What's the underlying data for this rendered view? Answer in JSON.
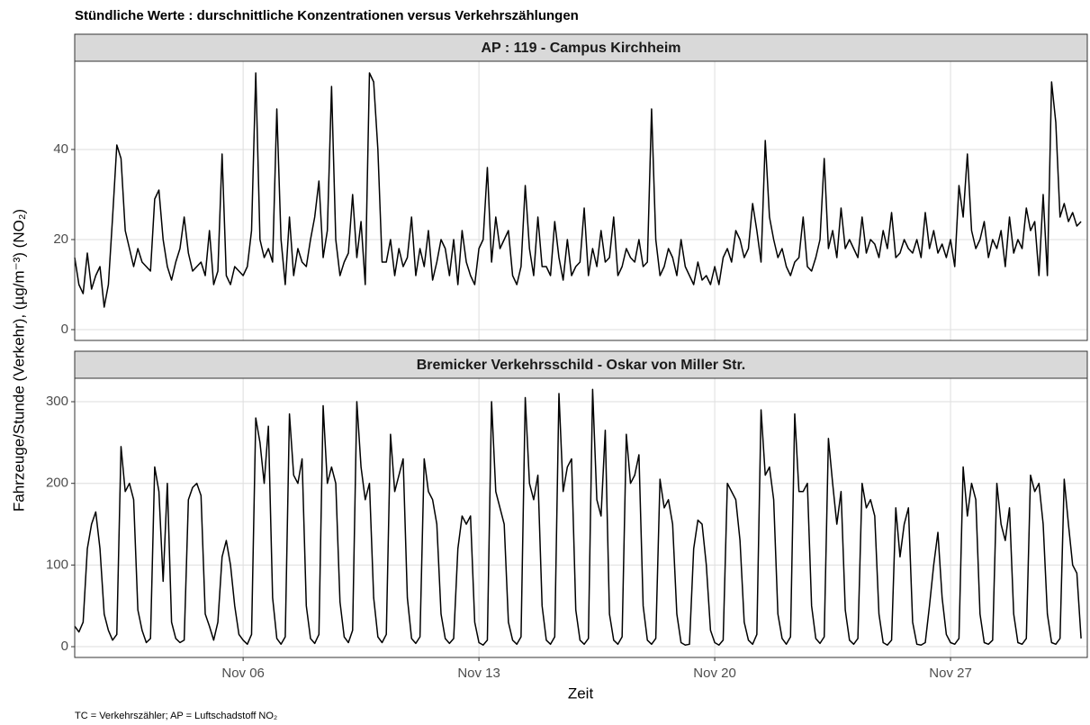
{
  "title": "Stündliche Werte : durschnittliche Konzentrationen versus Verkehrszählungen",
  "x_label": "Zeit",
  "y_label": "Fahrzeuge/Stunde (Verkehr), (µg/m⁻³) (NO₂)",
  "caption": "TC = Verkehrszähler; AP = Luftschadstoff NO₂",
  "chart_data": [
    {
      "type": "line",
      "title": "AP : 119 - Campus Kirchheim",
      "color": "#000000",
      "grid": true,
      "xlim": [
        1,
        31.06
      ],
      "ylim": [
        -2.4,
        59.6
      ],
      "yticks": [
        0,
        20,
        40
      ],
      "x": [
        1,
        1.125,
        1.25,
        1.375,
        1.5,
        1.625,
        1.75,
        1.875,
        2,
        2.125,
        2.25,
        2.375,
        2.5,
        2.625,
        2.75,
        2.875,
        3,
        3.125,
        3.25,
        3.375,
        3.5,
        3.625,
        3.75,
        3.875,
        4,
        4.125,
        4.25,
        4.375,
        4.5,
        4.625,
        4.75,
        4.875,
        5,
        5.125,
        5.25,
        5.375,
        5.5,
        5.625,
        5.75,
        5.875,
        6,
        6.125,
        6.25,
        6.375,
        6.5,
        6.625,
        6.75,
        6.875,
        7,
        7.125,
        7.25,
        7.375,
        7.5,
        7.625,
        7.75,
        7.875,
        8,
        8.125,
        8.25,
        8.375,
        8.5,
        8.625,
        8.75,
        8.875,
        9,
        9.125,
        9.25,
        9.375,
        9.5,
        9.625,
        9.75,
        9.875,
        10,
        10.125,
        10.25,
        10.375,
        10.5,
        10.625,
        10.75,
        10.875,
        11,
        11.125,
        11.25,
        11.375,
        11.5,
        11.625,
        11.75,
        11.875,
        12,
        12.125,
        12.25,
        12.375,
        12.5,
        12.625,
        12.75,
        12.875,
        13,
        13.125,
        13.25,
        13.375,
        13.5,
        13.625,
        13.75,
        13.875,
        14,
        14.125,
        14.25,
        14.375,
        14.5,
        14.625,
        14.75,
        14.875,
        15,
        15.125,
        15.25,
        15.375,
        15.5,
        15.625,
        15.75,
        15.875,
        16,
        16.125,
        16.25,
        16.375,
        16.5,
        16.625,
        16.75,
        16.875,
        17,
        17.125,
        17.25,
        17.375,
        17.5,
        17.625,
        17.75,
        17.875,
        18,
        18.125,
        18.25,
        18.375,
        18.5,
        18.625,
        18.75,
        18.875,
        19,
        19.125,
        19.25,
        19.375,
        19.5,
        19.625,
        19.75,
        19.875,
        20,
        20.125,
        20.25,
        20.375,
        20.5,
        20.625,
        20.75,
        20.875,
        21,
        21.125,
        21.25,
        21.375,
        21.5,
        21.625,
        21.75,
        21.875,
        22,
        22.125,
        22.25,
        22.375,
        22.5,
        22.625,
        22.75,
        22.875,
        23,
        23.125,
        23.25,
        23.375,
        23.5,
        23.625,
        23.75,
        23.875,
        24,
        24.125,
        24.25,
        24.375,
        24.5,
        24.625,
        24.75,
        24.875,
        25,
        25.125,
        25.25,
        25.375,
        25.5,
        25.625,
        25.75,
        25.875,
        26,
        26.125,
        26.25,
        26.375,
        26.5,
        26.625,
        26.75,
        26.875,
        27,
        27.125,
        27.25,
        27.375,
        27.5,
        27.625,
        27.75,
        27.875,
        28,
        28.125,
        28.25,
        28.375,
        28.5,
        28.625,
        28.75,
        28.875,
        29,
        29.125,
        29.25,
        29.375,
        29.5,
        29.625,
        29.75,
        29.875,
        30,
        30.125,
        30.25,
        30.375,
        30.5,
        30.625,
        30.75,
        30.875
      ],
      "values": [
        16,
        10,
        8,
        17,
        9,
        12,
        14,
        5,
        10,
        25,
        41,
        38,
        22,
        18,
        14,
        18,
        15,
        14,
        13,
        29,
        31,
        20,
        14,
        11,
        15,
        18,
        25,
        17,
        13,
        14,
        15,
        12,
        22,
        10,
        13,
        39,
        12,
        10,
        14,
        13,
        12,
        14,
        22,
        57,
        20,
        16,
        18,
        15,
        49,
        20,
        10,
        25,
        12,
        18,
        15,
        14,
        20,
        25,
        33,
        16,
        22,
        54,
        20,
        12,
        15,
        17,
        30,
        16,
        24,
        10,
        57,
        55,
        40,
        15,
        15,
        20,
        12,
        18,
        14,
        16,
        25,
        12,
        18,
        14,
        22,
        11,
        15,
        20,
        18,
        12,
        20,
        10,
        22,
        15,
        12,
        10,
        18,
        20,
        36,
        15,
        25,
        18,
        20,
        22,
        12,
        10,
        14,
        32,
        18,
        12,
        25,
        14,
        14,
        12,
        24,
        16,
        11,
        20,
        12,
        14,
        15,
        27,
        12,
        18,
        14,
        22,
        15,
        16,
        25,
        12,
        14,
        18,
        16,
        15,
        20,
        14,
        15,
        49,
        20,
        12,
        14,
        18,
        16,
        12,
        20,
        14,
        12,
        10,
        15,
        11,
        12,
        10,
        14,
        10,
        16,
        18,
        15,
        22,
        20,
        16,
        18,
        28,
        22,
        15,
        42,
        25,
        20,
        16,
        18,
        14,
        12,
        15,
        16,
        25,
        14,
        13,
        16,
        20,
        38,
        18,
        22,
        16,
        27,
        18,
        20,
        18,
        16,
        25,
        17,
        20,
        19,
        16,
        22,
        18,
        26,
        16,
        17,
        20,
        18,
        17,
        20,
        16,
        26,
        18,
        22,
        17,
        19,
        16,
        20,
        14,
        32,
        25,
        39,
        22,
        18,
        20,
        24,
        16,
        20,
        18,
        22,
        14,
        25,
        17,
        20,
        18,
        27,
        22,
        24,
        12,
        30,
        12,
        55,
        46,
        25,
        28,
        24,
        26,
        23,
        24
      ]
    },
    {
      "type": "line",
      "title": "Bremicker Verkehrsschild - Oskar von Miller Str.",
      "color": "#000000",
      "grid": true,
      "xlim": [
        1,
        31.06
      ],
      "ylim": [
        -13.2,
        328.7
      ],
      "yticks": [
        0,
        100,
        200,
        300
      ],
      "xticks": [
        {
          "value": 6,
          "label": "Nov 06"
        },
        {
          "value": 13,
          "label": "Nov 13"
        },
        {
          "value": 20,
          "label": "Nov 20"
        },
        {
          "value": 27,
          "label": "Nov 27"
        }
      ],
      "x": [
        1,
        1.125,
        1.25,
        1.375,
        1.5,
        1.625,
        1.75,
        1.875,
        2,
        2.125,
        2.25,
        2.375,
        2.5,
        2.625,
        2.75,
        2.875,
        3,
        3.125,
        3.25,
        3.375,
        3.5,
        3.625,
        3.75,
        3.875,
        4,
        4.125,
        4.25,
        4.375,
        4.5,
        4.625,
        4.75,
        4.875,
        5,
        5.125,
        5.25,
        5.375,
        5.5,
        5.625,
        5.75,
        5.875,
        6,
        6.125,
        6.25,
        6.375,
        6.5,
        6.625,
        6.75,
        6.875,
        7,
        7.125,
        7.25,
        7.375,
        7.5,
        7.625,
        7.75,
        7.875,
        8,
        8.125,
        8.25,
        8.375,
        8.5,
        8.625,
        8.75,
        8.875,
        9,
        9.125,
        9.25,
        9.375,
        9.5,
        9.625,
        9.75,
        9.875,
        10,
        10.125,
        10.25,
        10.375,
        10.5,
        10.625,
        10.75,
        10.875,
        11,
        11.125,
        11.25,
        11.375,
        11.5,
        11.625,
        11.75,
        11.875,
        12,
        12.125,
        12.25,
        12.375,
        12.5,
        12.625,
        12.75,
        12.875,
        13,
        13.125,
        13.25,
        13.375,
        13.5,
        13.625,
        13.75,
        13.875,
        14,
        14.125,
        14.25,
        14.375,
        14.5,
        14.625,
        14.75,
        14.875,
        15,
        15.125,
        15.25,
        15.375,
        15.5,
        15.625,
        15.75,
        15.875,
        16,
        16.125,
        16.25,
        16.375,
        16.5,
        16.625,
        16.75,
        16.875,
        17,
        17.125,
        17.25,
        17.375,
        17.5,
        17.625,
        17.75,
        17.875,
        18,
        18.125,
        18.25,
        18.375,
        18.5,
        18.625,
        18.75,
        18.875,
        19,
        19.125,
        19.25,
        19.375,
        19.5,
        19.625,
        19.75,
        19.875,
        20,
        20.125,
        20.25,
        20.375,
        20.5,
        20.625,
        20.75,
        20.875,
        21,
        21.125,
        21.25,
        21.375,
        21.5,
        21.625,
        21.75,
        21.875,
        22,
        22.125,
        22.25,
        22.375,
        22.5,
        22.625,
        22.75,
        22.875,
        23,
        23.125,
        23.25,
        23.375,
        23.5,
        23.625,
        23.75,
        23.875,
        24,
        24.125,
        24.25,
        24.375,
        24.5,
        24.625,
        24.75,
        24.875,
        25,
        25.125,
        25.25,
        25.375,
        25.5,
        25.625,
        25.75,
        25.875,
        26,
        26.125,
        26.25,
        26.375,
        26.5,
        26.625,
        26.75,
        26.875,
        27,
        27.125,
        27.25,
        27.375,
        27.5,
        27.625,
        27.75,
        27.875,
        28,
        28.125,
        28.25,
        28.375,
        28.5,
        28.625,
        28.75,
        28.875,
        29,
        29.125,
        29.25,
        29.375,
        29.5,
        29.625,
        29.75,
        29.875,
        30,
        30.125,
        30.25,
        30.375,
        30.5,
        30.625,
        30.75,
        30.875
      ],
      "values": [
        25,
        18,
        30,
        120,
        150,
        165,
        120,
        40,
        20,
        8,
        15,
        245,
        190,
        200,
        180,
        45,
        20,
        5,
        10,
        220,
        190,
        80,
        200,
        30,
        10,
        5,
        8,
        180,
        195,
        200,
        185,
        40,
        25,
        8,
        30,
        110,
        130,
        100,
        50,
        15,
        8,
        3,
        15,
        280,
        250,
        200,
        270,
        60,
        10,
        3,
        12,
        285,
        210,
        200,
        230,
        50,
        10,
        4,
        15,
        295,
        200,
        220,
        200,
        55,
        12,
        5,
        20,
        300,
        220,
        180,
        200,
        60,
        12,
        5,
        15,
        260,
        190,
        210,
        230,
        60,
        10,
        4,
        12,
        230,
        190,
        180,
        150,
        40,
        10,
        4,
        10,
        120,
        160,
        150,
        160,
        30,
        5,
        2,
        8,
        300,
        190,
        170,
        150,
        30,
        8,
        3,
        12,
        305,
        200,
        180,
        210,
        50,
        8,
        3,
        12,
        310,
        190,
        220,
        230,
        45,
        8,
        3,
        10,
        315,
        180,
        160,
        265,
        40,
        8,
        3,
        12,
        260,
        200,
        210,
        235,
        50,
        8,
        3,
        10,
        205,
        170,
        180,
        150,
        40,
        5,
        2,
        3,
        120,
        155,
        150,
        100,
        20,
        5,
        2,
        8,
        200,
        190,
        180,
        130,
        30,
        8,
        3,
        15,
        290,
        210,
        220,
        180,
        40,
        10,
        3,
        12,
        285,
        190,
        190,
        200,
        50,
        10,
        4,
        12,
        255,
        200,
        150,
        190,
        45,
        8,
        3,
        10,
        200,
        170,
        180,
        160,
        40,
        5,
        2,
        8,
        170,
        110,
        150,
        170,
        30,
        3,
        2,
        5,
        50,
        100,
        140,
        60,
        15,
        5,
        3,
        10,
        220,
        160,
        200,
        180,
        40,
        5,
        3,
        8,
        200,
        150,
        130,
        170,
        40,
        5,
        3,
        10,
        210,
        190,
        200,
        150,
        40,
        5,
        3,
        10,
        205,
        150,
        100,
        90,
        10
      ]
    }
  ]
}
